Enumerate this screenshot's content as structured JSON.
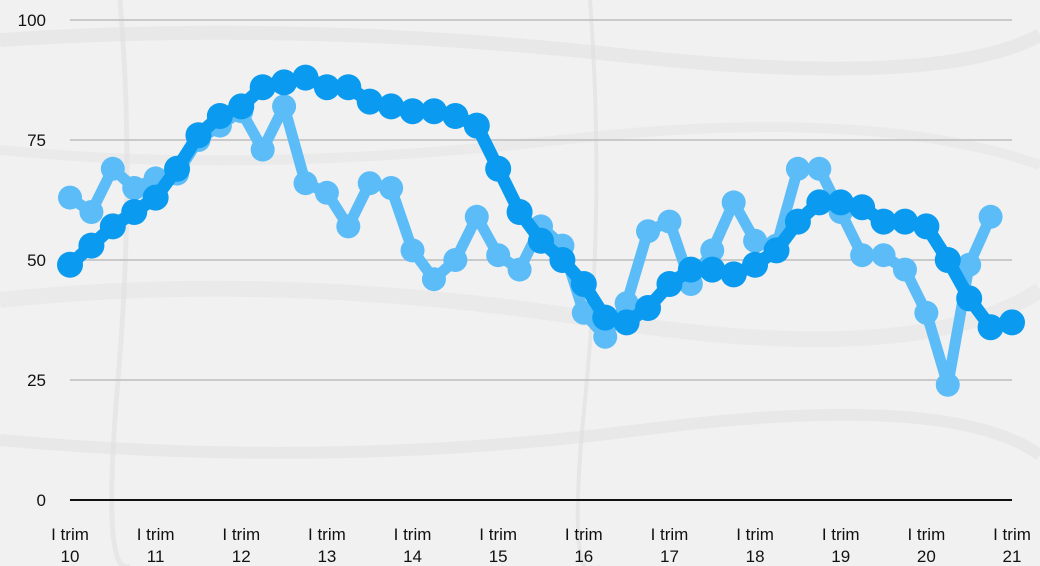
{
  "chart_data": {
    "type": "line",
    "ylim": [
      0,
      100
    ],
    "yticks": [
      0,
      25,
      50,
      75,
      100
    ],
    "xticks": [
      {
        "label": [
          "I trim",
          "10"
        ],
        "x": 0
      },
      {
        "label": [
          "I trim",
          "11"
        ],
        "x": 4
      },
      {
        "label": [
          "I trim",
          "12"
        ],
        "x": 8
      },
      {
        "label": [
          "I trim",
          "13"
        ],
        "x": 12
      },
      {
        "label": [
          "I trim",
          "14"
        ],
        "x": 16
      },
      {
        "label": [
          "I trim",
          "15"
        ],
        "x": 20
      },
      {
        "label": [
          "I trim",
          "16"
        ],
        "x": 24
      },
      {
        "label": [
          "I trim",
          "17"
        ],
        "x": 28
      },
      {
        "label": [
          "I trim",
          "18"
        ],
        "x": 32
      },
      {
        "label": [
          "I trim",
          "19"
        ],
        "x": 36
      },
      {
        "label": [
          "I trim",
          "20"
        ],
        "x": 40
      },
      {
        "label": [
          "I trim",
          "21"
        ],
        "x": 44
      }
    ],
    "grid": true,
    "legend": "none",
    "series": [
      {
        "color": "#5bbcf7",
        "values": [
          63,
          60,
          69,
          65,
          67,
          68,
          75,
          78,
          81,
          73,
          82,
          66,
          64,
          57,
          66,
          65,
          52,
          46,
          50,
          59,
          51,
          48,
          57,
          53,
          39,
          34,
          41,
          56,
          58,
          45,
          52,
          62,
          54,
          53,
          69,
          69,
          60,
          51,
          51,
          48,
          39,
          24,
          49,
          59
        ]
      },
      {
        "color": "#0a9af0",
        "values": [
          49,
          53,
          57,
          60,
          63,
          69,
          76,
          80,
          82,
          86,
          87,
          88,
          86,
          86,
          83,
          82,
          81,
          81,
          80,
          78,
          69,
          60,
          54,
          50,
          45,
          38,
          37,
          40,
          45,
          48,
          48,
          47,
          49,
          52,
          58,
          62,
          62,
          61,
          58,
          58,
          57,
          50,
          42,
          36,
          37
        ]
      }
    ]
  }
}
